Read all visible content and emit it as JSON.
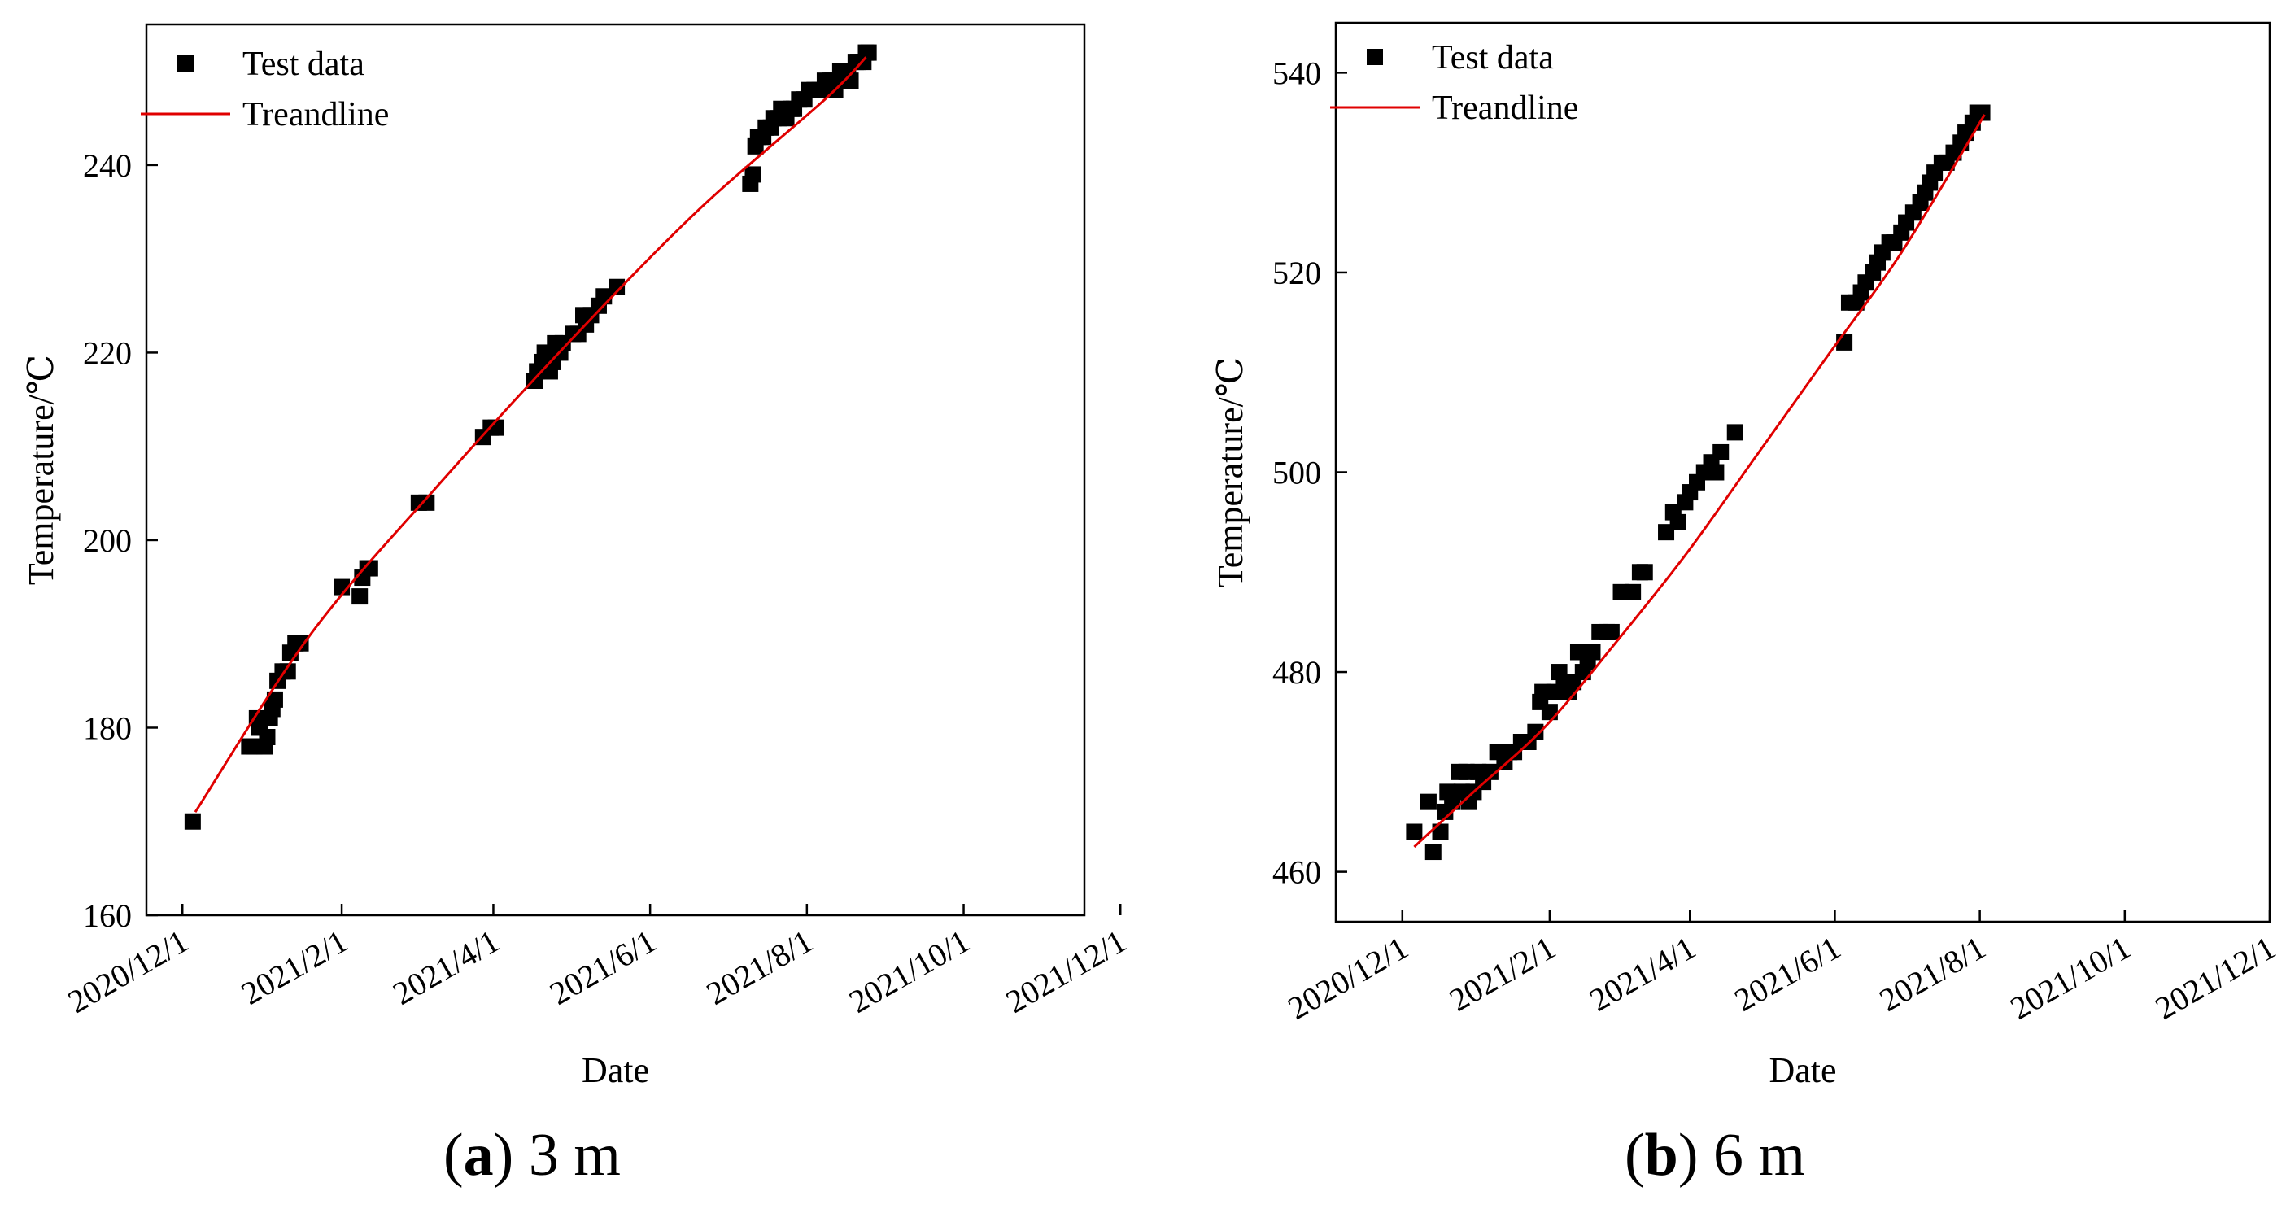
{
  "chart_data": [
    {
      "type": "scatter",
      "caption": {
        "letter": "a",
        "text": "3 m"
      },
      "xlabel": "Date",
      "ylabel": "Temperature/℃",
      "x_ticks": [
        "2020/12/1",
        "2021/2/1",
        "2021/4/1",
        "2021/6/1",
        "2021/8/1",
        "2021/10/1",
        "2021/12/1"
      ],
      "xlim_days": [
        -14,
        351
      ],
      "ylim": [
        160,
        255
      ],
      "y_ticks": [
        160,
        180,
        200,
        220,
        240
      ],
      "legend_position": "top-left",
      "series": [
        {
          "name": "Test data",
          "marker": "square",
          "color": "#000000",
          "points": [
            [
              4,
              170
            ],
            [
              26,
              178
            ],
            [
              28,
              178
            ],
            [
              29,
              181
            ],
            [
              30,
              180
            ],
            [
              32,
              178
            ],
            [
              33,
              179
            ],
            [
              34,
              181
            ],
            [
              35,
              182
            ],
            [
              36,
              183
            ],
            [
              37,
              185
            ],
            [
              39,
              186
            ],
            [
              41,
              186
            ],
            [
              42,
              188
            ],
            [
              44,
              189
            ],
            [
              46,
              189
            ],
            [
              62,
              195
            ],
            [
              69,
              194
            ],
            [
              70,
              196
            ],
            [
              72,
              197
            ],
            [
              73,
              197
            ],
            [
              92,
              204
            ],
            [
              95,
              204
            ],
            [
              117,
              211
            ],
            [
              120,
              212
            ],
            [
              122,
              212
            ],
            [
              137,
              217
            ],
            [
              138,
              218
            ],
            [
              140,
              219
            ],
            [
              141,
              220
            ],
            [
              143,
              218
            ],
            [
              144,
              219
            ],
            [
              145,
              221
            ],
            [
              147,
              220
            ],
            [
              148,
              221
            ],
            [
              152,
              222
            ],
            [
              154,
              222
            ],
            [
              156,
              224
            ],
            [
              157,
              223
            ],
            [
              159,
              224
            ],
            [
              162,
              225
            ],
            [
              164,
              226
            ],
            [
              169,
              227
            ],
            [
              221,
              238
            ],
            [
              222,
              239
            ],
            [
              223,
              242
            ],
            [
              224,
              243
            ],
            [
              226,
              243
            ],
            [
              227,
              244
            ],
            [
              229,
              244
            ],
            [
              230,
              245
            ],
            [
              232,
              245
            ],
            [
              233,
              246
            ],
            [
              235,
              245
            ],
            [
              237,
              246
            ],
            [
              238,
              246
            ],
            [
              240,
              247
            ],
            [
              242,
              247
            ],
            [
              244,
              248
            ],
            [
              246,
              248
            ],
            [
              248,
              248
            ],
            [
              250,
              249
            ],
            [
              252,
              249
            ],
            [
              253,
              249
            ],
            [
              254,
              248
            ],
            [
              256,
              250
            ],
            [
              257,
              249
            ],
            [
              259,
              250
            ],
            [
              260,
              249
            ],
            [
              262,
              251
            ],
            [
              263,
              251
            ],
            [
              265,
              251
            ],
            [
              266,
              252
            ],
            [
              267,
              252
            ]
          ]
        },
        {
          "name": "Treandline",
          "color": "#e00000",
          "curve": [
            [
              5,
              171
            ],
            [
              50,
              190
            ],
            [
              100,
              206
            ],
            [
              150,
              221
            ],
            [
              200,
              235
            ],
            [
              250,
              247
            ],
            [
              266,
              251.5
            ]
          ]
        }
      ]
    },
    {
      "type": "scatter",
      "caption": {
        "letter": "b",
        "text": "6 m"
      },
      "xlabel": "Date",
      "ylabel": "Temperature/℃",
      "x_ticks": [
        "2020/12/1",
        "2021/2/1",
        "2021/4/1",
        "2021/6/1",
        "2021/8/1",
        "2021/10/1",
        "2021/12/1"
      ],
      "xlim_days": [
        -28,
        365
      ],
      "ylim": [
        455,
        545
      ],
      "y_ticks": [
        460,
        480,
        500,
        520,
        540
      ],
      "legend_position": "top-left",
      "series": [
        {
          "name": "Test data",
          "marker": "square",
          "color": "#000000",
          "points": [
            [
              5,
              464
            ],
            [
              11,
              467
            ],
            [
              13,
              462
            ],
            [
              16,
              464
            ],
            [
              18,
              466
            ],
            [
              19,
              468
            ],
            [
              21,
              467
            ],
            [
              24,
              470
            ],
            [
              25,
              468
            ],
            [
              27,
              470
            ],
            [
              28,
              467
            ],
            [
              30,
              468
            ],
            [
              32,
              470
            ],
            [
              34,
              469
            ],
            [
              37,
              470
            ],
            [
              40,
              472
            ],
            [
              43,
              471
            ],
            [
              45,
              472
            ],
            [
              47,
              472
            ],
            [
              50,
              473
            ],
            [
              53,
              473
            ],
            [
              56,
              474
            ],
            [
              58,
              477
            ],
            [
              59,
              478
            ],
            [
              62,
              476
            ],
            [
              64,
              478
            ],
            [
              66,
              480
            ],
            [
              68,
              479
            ],
            [
              70,
              478
            ],
            [
              72,
              479
            ],
            [
              74,
              482
            ],
            [
              76,
              480
            ],
            [
              78,
              481
            ],
            [
              80,
              482
            ],
            [
              83,
              484
            ],
            [
              86,
              484
            ],
            [
              88,
              484
            ],
            [
              92,
              488
            ],
            [
              97,
              488
            ],
            [
              100,
              490
            ],
            [
              102,
              490
            ],
            [
              111,
              494
            ],
            [
              114,
              496
            ],
            [
              116,
              495
            ],
            [
              119,
              497
            ],
            [
              121,
              498
            ],
            [
              124,
              499
            ],
            [
              127,
              500
            ],
            [
              130,
              501
            ],
            [
              132,
              500
            ],
            [
              134,
              502
            ],
            [
              140,
              504
            ],
            [
              186,
              513
            ],
            [
              188,
              517
            ],
            [
              191,
              517
            ],
            [
              193,
              518
            ],
            [
              195,
              519
            ],
            [
              198,
              520
            ],
            [
              200,
              521
            ],
            [
              202,
              522
            ],
            [
              205,
              523
            ],
            [
              207,
              523
            ],
            [
              210,
              524
            ],
            [
              212,
              525
            ],
            [
              215,
              526
            ],
            [
              218,
              527
            ],
            [
              220,
              528
            ],
            [
              222,
              529
            ],
            [
              224,
              530
            ],
            [
              227,
              531
            ],
            [
              229,
              531
            ],
            [
              232,
              532
            ],
            [
              235,
              533
            ],
            [
              237,
              534
            ],
            [
              240,
              535
            ],
            [
              242,
              536
            ],
            [
              244,
              536
            ]
          ]
        },
        {
          "name": "Treandline",
          "color": "#e00000",
          "curve": [
            [
              5,
              462.5
            ],
            [
              30,
              468
            ],
            [
              60,
              474.5
            ],
            [
              90,
              483
            ],
            [
              120,
              492
            ],
            [
              150,
              502
            ],
            [
              180,
              512
            ],
            [
              210,
              522
            ],
            [
              245,
              535.8
            ]
          ]
        }
      ]
    }
  ]
}
